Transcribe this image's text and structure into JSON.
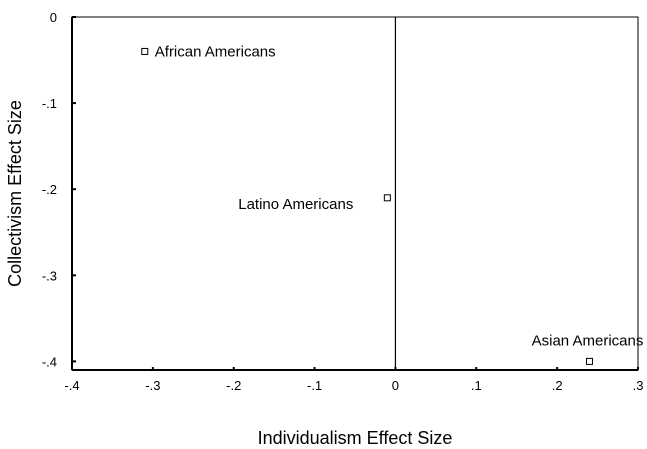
{
  "chart_data": {
    "type": "scatter",
    "title": "",
    "xlabel": "Individualism Effect Size",
    "ylabel": "Collectivism Effect Size",
    "xlim": [
      -0.4,
      0.3
    ],
    "ylim": [
      -0.41,
      0
    ],
    "x_ticks": [
      -0.4,
      -0.3,
      -0.2,
      -0.1,
      0,
      0.1,
      0.2,
      0.3
    ],
    "x_tick_labels": [
      "-.4",
      "-.3",
      "-.2",
      "-.1",
      "0",
      ".1",
      ".2",
      ".3"
    ],
    "y_ticks": [
      0,
      -0.1,
      -0.2,
      -0.3,
      -0.4
    ],
    "y_tick_labels": [
      "0",
      "-.1",
      "-.2",
      "-.3",
      "-.4"
    ],
    "reference_line_x": 0,
    "grid": false,
    "marker": "open-square",
    "points": [
      {
        "label": "African Americans",
        "x": -0.31,
        "y": -0.04,
        "label_side": "right"
      },
      {
        "label": "Latino Americans",
        "x": -0.01,
        "y": -0.21,
        "label_side": "left"
      },
      {
        "label": "Asian Americans",
        "x": 0.24,
        "y": -0.4,
        "label_side": "above"
      }
    ]
  }
}
